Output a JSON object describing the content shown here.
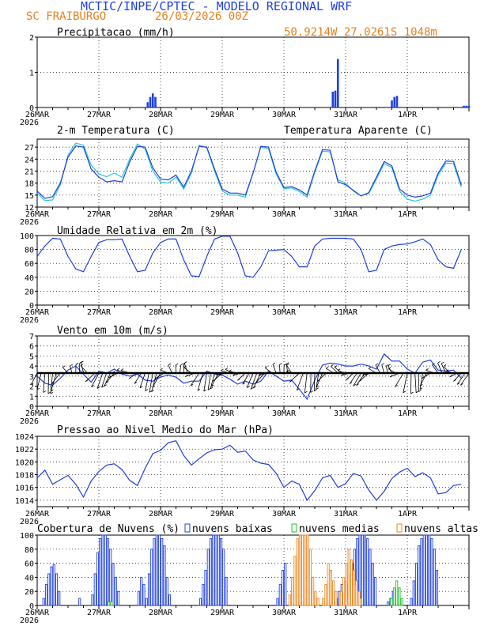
{
  "header": {
    "title": "MCTIC/INPE/CPTEC - MODELO REGIONAL WRF",
    "location": "SC FRAIBURGO",
    "run_date": "26/03/2026 00Z",
    "coords": "50.9214W 27.0261S 1048m"
  },
  "x_axis": {
    "labels": [
      "26MAR",
      "27MAR",
      "28MAR",
      "29MAR",
      "30MAR",
      "31MAR",
      "1APR"
    ],
    "year": "2026",
    "hours_total": 168
  },
  "colors": {
    "blue": "#1f3fe0",
    "cyan": "#26c9c9",
    "green": "#22c02a",
    "orange": "#f08a24",
    "grid": "#000000"
  },
  "chart_data": [
    {
      "id": "precip",
      "type": "bar",
      "title": "Precipitacao (mm/h)",
      "ylim": [
        0,
        2
      ],
      "yticks": [
        0,
        1,
        2
      ],
      "hour_step": 1,
      "series": [
        {
          "name": "Precipitacao",
          "values": [
            0,
            0,
            0,
            0,
            0,
            0,
            0,
            0,
            0,
            0,
            0,
            0,
            0,
            0,
            0,
            0,
            0,
            0,
            0,
            0,
            0,
            0,
            0,
            0,
            0,
            0,
            0,
            0,
            0,
            0,
            0,
            0,
            0,
            0,
            0,
            0,
            0,
            0,
            0,
            0,
            0,
            0,
            0,
            0.15,
            0.3,
            0.4,
            0.3,
            0,
            0,
            0,
            0,
            0,
            0,
            0,
            0,
            0,
            0,
            0,
            0,
            0,
            0,
            0,
            0,
            0,
            0,
            0,
            0,
            0,
            0,
            0,
            0,
            0,
            0,
            0,
            0,
            0,
            0,
            0,
            0,
            0,
            0,
            0,
            0,
            0,
            0,
            0,
            0,
            0,
            0,
            0,
            0,
            0,
            0,
            0,
            0,
            0,
            0,
            0,
            0,
            0,
            0,
            0,
            0,
            0,
            0,
            0,
            0,
            0,
            0,
            0,
            0,
            0,
            0,
            0,
            0,
            0.45,
            0.48,
            1.38,
            0,
            0,
            0,
            0,
            0,
            0,
            0,
            0,
            0,
            0,
            0,
            0,
            0,
            0,
            0,
            0,
            0,
            0,
            0,
            0,
            0.2,
            0.3,
            0.33,
            0,
            0,
            0,
            0,
            0,
            0,
            0,
            0,
            0,
            0,
            0,
            0,
            0,
            0,
            0,
            0,
            0,
            0,
            0,
            0,
            0,
            0,
            0,
            0,
            0,
            0.05,
            0.05,
            0.05,
            0
          ]
        }
      ]
    },
    {
      "id": "temp",
      "type": "line",
      "title": "2-m Temperatura (C)",
      "legend": "Temperatura Aparente (C)",
      "ylim": [
        12,
        29
      ],
      "yticks": [
        12,
        15,
        18,
        21,
        24,
        27
      ],
      "hour_step": 3,
      "series": [
        {
          "name": "Temperatura",
          "values": [
            16,
            14.2,
            14.6,
            18,
            24.5,
            27.3,
            27,
            21.5,
            19.5,
            18.3,
            18.6,
            18.3,
            23.3,
            27.2,
            27,
            21.8,
            19,
            18.8,
            20,
            17,
            21,
            27.2,
            27,
            21.5,
            16.5,
            15.5,
            15.5,
            15,
            20.5,
            27.2,
            27,
            20.7,
            16.9,
            17.1,
            16.3,
            15,
            21,
            26.4,
            26.2,
            18.3,
            17.6,
            16.2,
            14.8,
            15.6,
            19.5,
            23.4,
            22.3,
            16.5,
            15,
            14.5,
            14.8,
            15.5,
            20.5,
            23.5,
            23.4,
            17.5
          ]
        },
        {
          "name": "Temperatura Aparente",
          "values": [
            15.5,
            13.6,
            13.8,
            17.6,
            25,
            28,
            27.5,
            22.5,
            20.3,
            19.6,
            20.5,
            19.5,
            24,
            27.8,
            26.5,
            21,
            18.2,
            18,
            19.5,
            16.5,
            20.5,
            27.5,
            26.8,
            21,
            16,
            15,
            15,
            14.5,
            20.5,
            27,
            26.6,
            20.2,
            16.6,
            16.8,
            15.9,
            14.5,
            20.7,
            26,
            25.8,
            18.8,
            18,
            16,
            14.8,
            15.4,
            19,
            22.9,
            21.9,
            16,
            14,
            13.5,
            14,
            15,
            20,
            23,
            22.9,
            17
          ]
        }
      ]
    },
    {
      "id": "rh",
      "type": "line",
      "title": "Umidade Relativa em 2m (%)",
      "ylim": [
        0,
        100
      ],
      "yticks": [
        0,
        20,
        40,
        60,
        80,
        100
      ],
      "hour_step": 3,
      "series": [
        {
          "name": "Umidade",
          "values": [
            70,
            85,
            96,
            95,
            70,
            52,
            48,
            70,
            90,
            94,
            94,
            95,
            70,
            48,
            50,
            75,
            90,
            95,
            95,
            65,
            42,
            41,
            70,
            95,
            99,
            99,
            75,
            42,
            40,
            55,
            78,
            79,
            80,
            70,
            55,
            55,
            85,
            95,
            96,
            96,
            96,
            95,
            80,
            48,
            50,
            80,
            85,
            87,
            88,
            91,
            95,
            87,
            65,
            55,
            53,
            80
          ]
        }
      ]
    },
    {
      "id": "wind",
      "type": "line",
      "title": "Vento em 10m (m/s)",
      "ylim": [
        0,
        7
      ],
      "yticks": [
        0,
        1,
        2,
        3,
        4,
        5,
        6,
        7
      ],
      "hour_step": 3,
      "series": [
        {
          "name": "Vento",
          "values": [
            3,
            2.3,
            2.1,
            2.8,
            3.6,
            4,
            3.2,
            2.4,
            3.5,
            3.3,
            3.7,
            3.2,
            3,
            3.2,
            2.6,
            2.5,
            2.9,
            3.1,
            2.9,
            2.3,
            2.5,
            2.5,
            3.5,
            3.2,
            3.1,
            2.7,
            2.2,
            2.5,
            2.2,
            2.5,
            3.5,
            3,
            2.5,
            2.6,
            1.7,
            0.7,
            2.6,
            4.1,
            4.3,
            4.2,
            4,
            4,
            4.2,
            4,
            3.7,
            5.2,
            4.5,
            4.5,
            3.7,
            3.3,
            4.4,
            4.6,
            3.6,
            3.5,
            3.6,
            2.8
          ]
        }
      ],
      "barb_hour_step": 1.5
    },
    {
      "id": "slp",
      "type": "line",
      "title": "Pressao ao Nivel Medio do Mar (hPa)",
      "ylim": [
        1013,
        1024
      ],
      "yticks": [
        1014,
        1016,
        1018,
        1020,
        1022,
        1024
      ],
      "hour_step": 3,
      "series": [
        {
          "name": "Pressao",
          "values": [
            1017.5,
            1018.7,
            1016.5,
            1017.2,
            1017.9,
            1016.5,
            1014.5,
            1017,
            1018.5,
            1019.5,
            1019.7,
            1018.8,
            1017.1,
            1016.3,
            1019,
            1021.3,
            1021.8,
            1023,
            1023.3,
            1021,
            1019.5,
            1020.5,
            1021.4,
            1021.9,
            1022,
            1022.6,
            1021.5,
            1021.7,
            1020.3,
            1019.8,
            1019.6,
            1018.2,
            1016,
            1017,
            1016.5,
            1014,
            1015.5,
            1017.5,
            1017.9,
            1016,
            1016.6,
            1018.2,
            1017.8,
            1015.6,
            1014,
            1015.4,
            1017.4,
            1018.4,
            1019,
            1017.7,
            1018.3,
            1017.5,
            1015,
            1015.2,
            1016.3,
            1016.5
          ]
        }
      ]
    },
    {
      "id": "clouds",
      "type": "bar",
      "title": "Cobertura de Nuvens (%)",
      "legend": [
        "nuvens baixas",
        "nuvens medias",
        "nuvens altas"
      ],
      "ylim": [
        0,
        100
      ],
      "yticks": [
        0,
        20,
        40,
        60,
        80,
        100
      ],
      "hour_step": 1,
      "series": [
        {
          "name": "nuvens baixas",
          "values": [
            0,
            0,
            0,
            0,
            0,
            0,
            0,
            0,
            0,
            0,
            0,
            0,
            0,
            0,
            0,
            0,
            0,
            0,
            0,
            0,
            0,
            0,
            0,
            0,
            0,
            0,
            0,
            0,
            0,
            0,
            0,
            0,
            0,
            0,
            0,
            0,
            0,
            0,
            0,
            0,
            0,
            0,
            0,
            0,
            0,
            0,
            0,
            0,
            0,
            0,
            0,
            0,
            0,
            0,
            0,
            0,
            0,
            0,
            0,
            0,
            0,
            0,
            0,
            0,
            0,
            0,
            0,
            0,
            0,
            0,
            0,
            0,
            0,
            0,
            0,
            0,
            0,
            0,
            0,
            0,
            0,
            0,
            0,
            0,
            0,
            0,
            0,
            0,
            0,
            0,
            0,
            0,
            0,
            0,
            0,
            0,
            0,
            0,
            0,
            0,
            0,
            0,
            0,
            0,
            0,
            0,
            0,
            0,
            0,
            0,
            0,
            0,
            0,
            0,
            0,
            0,
            0,
            0,
            0,
            0,
            0,
            0,
            0,
            0,
            0,
            0,
            0,
            0,
            0,
            0,
            0,
            0,
            0,
            0,
            0,
            0,
            0,
            0,
            0,
            0,
            0,
            0,
            0,
            0,
            0,
            0,
            0,
            0,
            0,
            0,
            0,
            0,
            0,
            0,
            0,
            0,
            0,
            0,
            0,
            0,
            0,
            0,
            0,
            0,
            0,
            0,
            0,
            0,
            0,
            0
          ]
        },
        {
          "name": "nuvens medias",
          "values": [
            0,
            0,
            0,
            0,
            0,
            0,
            0,
            0,
            0,
            0,
            0,
            0,
            0,
            0,
            0,
            0,
            0,
            0,
            0,
            0,
            0,
            0,
            0,
            0,
            0,
            0,
            0,
            0,
            0,
            0,
            0,
            0,
            0,
            0,
            0,
            0,
            0,
            0,
            0,
            0,
            0,
            0,
            0,
            0,
            0,
            0,
            0,
            0,
            0,
            0,
            0,
            0,
            0,
            0,
            0,
            0,
            0,
            0,
            0,
            0,
            0,
            0,
            0,
            0,
            0,
            0,
            0,
            0,
            0,
            0,
            0,
            0,
            0,
            0,
            0,
            0,
            0,
            0,
            0,
            0,
            0,
            0,
            0,
            0,
            0,
            0,
            0,
            0,
            0,
            0,
            0,
            0,
            0,
            0,
            0,
            0,
            0,
            0,
            0,
            0,
            0,
            0,
            0,
            0,
            0,
            0,
            0,
            0,
            0,
            0,
            0,
            0,
            0,
            0,
            0,
            0,
            0,
            0,
            0,
            0,
            0,
            0,
            0,
            0,
            0,
            0,
            0,
            0,
            0,
            0,
            0,
            0,
            0,
            0,
            0,
            0,
            0,
            0,
            0,
            0,
            0,
            0,
            0,
            0,
            0,
            0,
            0,
            0,
            0,
            0,
            0,
            0,
            0,
            0,
            0,
            0,
            0,
            0,
            0,
            0,
            0,
            0,
            0,
            0,
            0,
            0,
            0,
            0,
            0,
            0
          ]
        },
        {
          "name": "nuvens altas",
          "values": [
            0,
            0,
            0,
            0,
            0,
            0,
            0,
            0,
            0,
            0,
            0,
            0,
            0,
            0,
            0,
            0,
            0,
            0,
            0,
            0,
            0,
            0,
            0,
            0,
            0,
            0,
            0,
            0,
            0,
            0,
            0,
            0,
            0,
            0,
            0,
            0,
            0,
            0,
            0,
            0,
            0,
            0,
            0,
            0,
            0,
            0,
            0,
            0,
            0,
            0,
            0,
            0,
            0,
            0,
            0,
            0,
            0,
            0,
            0,
            0,
            0,
            0,
            0,
            0,
            0,
            0,
            0,
            0,
            0,
            0,
            0,
            0,
            0,
            0,
            0,
            0,
            0,
            0,
            0,
            0,
            0,
            0,
            0,
            0,
            0,
            0,
            0,
            0,
            0,
            0,
            0,
            0,
            0,
            0,
            0,
            0,
            0,
            0,
            0,
            0,
            0,
            0,
            0,
            0,
            0,
            0,
            0,
            0,
            0,
            0,
            0,
            0,
            0,
            0,
            0,
            0,
            0,
            0,
            0,
            0,
            0,
            0,
            0,
            0,
            0,
            0,
            0,
            0,
            0,
            0,
            0,
            0,
            0,
            0,
            0,
            0,
            0,
            0,
            0,
            0,
            0,
            0,
            0,
            0,
            0,
            0,
            0,
            0,
            0,
            0,
            0,
            0,
            0,
            0,
            0,
            0,
            0,
            0,
            0,
            0,
            0,
            0,
            0,
            0,
            0,
            0,
            0,
            0,
            0,
            0
          ]
        }
      ]
    }
  ]
}
